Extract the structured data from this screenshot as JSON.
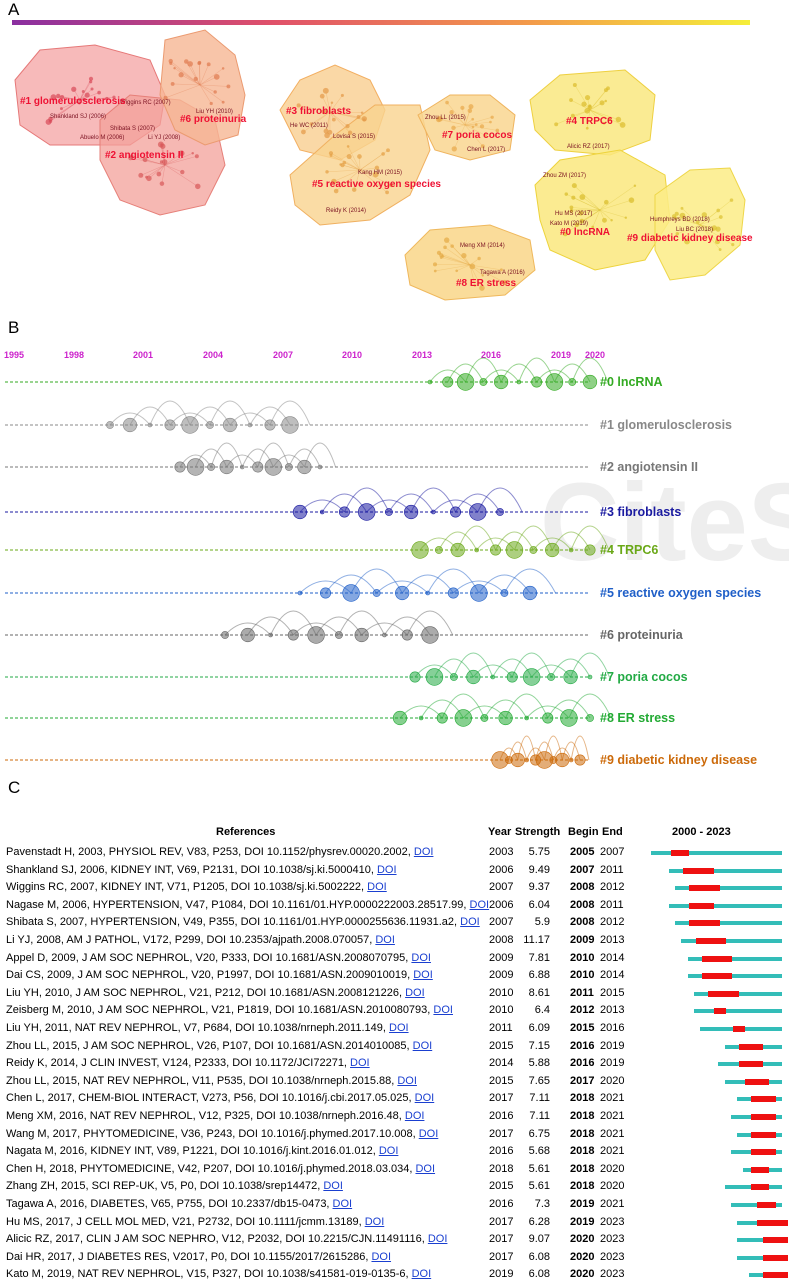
{
  "panels": {
    "a": "A",
    "b": "B",
    "c": "C"
  },
  "panel_a": {
    "clusters": [
      {
        "label": "#1 glomerulosclerosis",
        "color": "#f08a8a"
      },
      {
        "label": "#2 angiotensin II",
        "color": "#f3958f"
      },
      {
        "label": "#6 proteinuria",
        "color": "#f4a77f"
      },
      {
        "label": "#3 fibroblasts",
        "color": "#f8c27a"
      },
      {
        "label": "#5 reactive oxygen species",
        "color": "#f7c275"
      },
      {
        "label": "#7 poria cocos",
        "color": "#f8cd7e"
      },
      {
        "label": "#8 ER stress",
        "color": "#f9cf7c"
      },
      {
        "label": "#4 TRPC6",
        "color": "#f9df6a"
      },
      {
        "label": "#0 lncRNA",
        "color": "#fae06c"
      },
      {
        "label": "#9 diabetic kidney disease",
        "color": "#fbe56e"
      }
    ],
    "authors": [
      "Shankland SJ (2006)",
      "Wiggins RC (2007)",
      "Liu YH (2010)",
      "Shibata S (2007)",
      "Abuelo M (2006)",
      "Li YJ (2008)",
      "He WC (2011)",
      "Lovisa S (2015)",
      "Kang HM (2015)",
      "Reidy K (2014)",
      "Zhou LL (2015)",
      "Chen L (2017)",
      "Alicic RZ (2017)",
      "Zhou ZM (2017)",
      "Hu MS (2017)",
      "Kato M (2019)",
      "Humphreys BD (2018)",
      "Liu BC (2018)",
      "Meng XM (2014)",
      "Tagawa A (2016)"
    ]
  },
  "panel_b": {
    "years": [
      "1995",
      "1998",
      "2001",
      "2004",
      "2007",
      "2010",
      "2013",
      "2016",
      "2019",
      "2020"
    ],
    "clusters": [
      {
        "label": "#0 lncRNA",
        "color": "#33aa22"
      },
      {
        "label": "#1 glomerulosclerosis",
        "color": "#888888"
      },
      {
        "label": "#2 angiotensin II",
        "color": "#777777"
      },
      {
        "label": "#3 fibroblasts",
        "color": "#1a1aa0"
      },
      {
        "label": "#4 TRPC6",
        "color": "#6aa817"
      },
      {
        "label": "#5 reactive oxygen species",
        "color": "#1f5fc8"
      },
      {
        "label": "#6 proteinuria",
        "color": "#666666"
      },
      {
        "label": "#7 poria cocos",
        "color": "#22aa44"
      },
      {
        "label": "#8 ER stress",
        "color": "#22aa33"
      },
      {
        "label": "#9 diabetic kidney disease",
        "color": "#cc6a0a"
      }
    ],
    "watermark": "CiteSpace"
  },
  "panel_c": {
    "headers": {
      "references": "References",
      "year": "Year",
      "strength": "Strength",
      "begin": "Begin",
      "end": "End",
      "range": "2000 - 2023"
    },
    "range_start": 2000,
    "range_end": 2023,
    "link_label": "DOI",
    "rows": [
      {
        "ref": "Pavenstadt H, 2003, PHYSIOL REV, V83, P253, DOI 10.1152/physrev.00020.2002,",
        "year": "2003",
        "strength": "5.75",
        "begin": "2005",
        "end": "2007"
      },
      {
        "ref": "Shankland SJ, 2006, KIDNEY INT, V69, P2131, DOI 10.1038/sj.ki.5000410,",
        "year": "2006",
        "strength": "9.49",
        "begin": "2007",
        "end": "2011"
      },
      {
        "ref": "Wiggins RC, 2007, KIDNEY INT, V71, P1205, DOI 10.1038/sj.ki.5002222,",
        "year": "2007",
        "strength": "9.37",
        "begin": "2008",
        "end": "2012"
      },
      {
        "ref": "Nagase M, 2006, HYPERTENSION, V47, P1084, DOI 10.1161/01.HYP.0000222003.28517.99,",
        "year": "2006",
        "strength": "6.04",
        "begin": "2008",
        "end": "2011"
      },
      {
        "ref": "Shibata S, 2007, HYPERTENSION, V49, P355, DOI 10.1161/01.HYP.0000255636.11931.a2,",
        "year": "2007",
        "strength": "5.9",
        "begin": "2008",
        "end": "2012"
      },
      {
        "ref": "Li YJ, 2008, AM J PATHOL, V172, P299, DOI 10.2353/ajpath.2008.070057,",
        "year": "2008",
        "strength": "11.17",
        "begin": "2009",
        "end": "2013"
      },
      {
        "ref": "Appel D, 2009, J AM SOC NEPHROL, V20, P333, DOI 10.1681/ASN.2008070795,",
        "year": "2009",
        "strength": "7.81",
        "begin": "2010",
        "end": "2014"
      },
      {
        "ref": "Dai CS, 2009, J AM SOC NEPHROL, V20, P1997, DOI 10.1681/ASN.2009010019,",
        "year": "2009",
        "strength": "6.88",
        "begin": "2010",
        "end": "2014"
      },
      {
        "ref": "Liu YH, 2010, J AM SOC NEPHROL, V21, P212, DOI 10.1681/ASN.2008121226,",
        "year": "2010",
        "strength": "8.61",
        "begin": "2011",
        "end": "2015"
      },
      {
        "ref": "Zeisberg M, 2010, J AM SOC NEPHROL, V21, P1819, DOI 10.1681/ASN.2010080793,",
        "year": "2010",
        "strength": "6.4",
        "begin": "2012",
        "end": "2013"
      },
      {
        "ref": "Liu YH, 2011, NAT REV NEPHROL, V7, P684, DOI 10.1038/nrneph.2011.149,",
        "year": "2011",
        "strength": "6.09",
        "begin": "2015",
        "end": "2016"
      },
      {
        "ref": "Zhou LL, 2015, J AM SOC NEPHROL, V26, P107, DOI 10.1681/ASN.2014010085,",
        "year": "2015",
        "strength": "7.15",
        "begin": "2016",
        "end": "2019"
      },
      {
        "ref": "Reidy K, 2014, J CLIN INVEST, V124, P2333, DOI 10.1172/JCI72271,",
        "year": "2014",
        "strength": "5.88",
        "begin": "2016",
        "end": "2019"
      },
      {
        "ref": "Zhou LL, 2015, NAT REV NEPHROL, V11, P535, DOI 10.1038/nrneph.2015.88,",
        "year": "2015",
        "strength": "7.65",
        "begin": "2017",
        "end": "2020"
      },
      {
        "ref": "Chen L, 2017, CHEM-BIOL INTERACT, V273, P56, DOI 10.1016/j.cbi.2017.05.025,",
        "year": "2017",
        "strength": "7.11",
        "begin": "2018",
        "end": "2021"
      },
      {
        "ref": "Meng XM, 2016, NAT REV NEPHROL, V12, P325, DOI 10.1038/nrneph.2016.48,",
        "year": "2016",
        "strength": "7.11",
        "begin": "2018",
        "end": "2021"
      },
      {
        "ref": "Wang M, 2017, PHYTOMEDICINE, V36, P243, DOI 10.1016/j.phymed.2017.10.008,",
        "year": "2017",
        "strength": "6.75",
        "begin": "2018",
        "end": "2021"
      },
      {
        "ref": "Nagata M, 2016, KIDNEY INT, V89, P1221, DOI 10.1016/j.kint.2016.01.012,",
        "year": "2016",
        "strength": "5.68",
        "begin": "2018",
        "end": "2021"
      },
      {
        "ref": "Chen H, 2018, PHYTOMEDICINE, V42, P207, DOI 10.1016/j.phymed.2018.03.034,",
        "year": "2018",
        "strength": "5.61",
        "begin": "2018",
        "end": "2020"
      },
      {
        "ref": "Zhang ZH, 2015, SCI REP-UK, V5, P0, DOI 10.1038/srep14472,",
        "year": "2015",
        "strength": "5.61",
        "begin": "2018",
        "end": "2020"
      },
      {
        "ref": "Tagawa A, 2016, DIABETES, V65, P755, DOI 10.2337/db15-0473,",
        "year": "2016",
        "strength": "7.3",
        "begin": "2019",
        "end": "2021"
      },
      {
        "ref": "Hu MS, 2017, J CELL MOL MED, V21, P2732, DOI 10.1111/jcmm.13189,",
        "year": "2017",
        "strength": "6.28",
        "begin": "2019",
        "end": "2023"
      },
      {
        "ref": "Alicic RZ, 2017, CLIN J AM SOC NEPHRO, V12, P2032, DOI 10.2215/CJN.11491116,",
        "year": "2017",
        "strength": "9.07",
        "begin": "2020",
        "end": "2023"
      },
      {
        "ref": "Dai HR, 2017, J DIABETES RES, V2017, P0, DOI 10.1155/2017/2615286,",
        "year": "2017",
        "strength": "6.08",
        "begin": "2020",
        "end": "2023"
      },
      {
        "ref": "Kato M, 2019, NAT REV NEPHROL, V15, P327, DOI 10.1038/s41581-019-0135-6,",
        "year": "2019",
        "strength": "6.08",
        "begin": "2020",
        "end": "2023"
      }
    ]
  }
}
